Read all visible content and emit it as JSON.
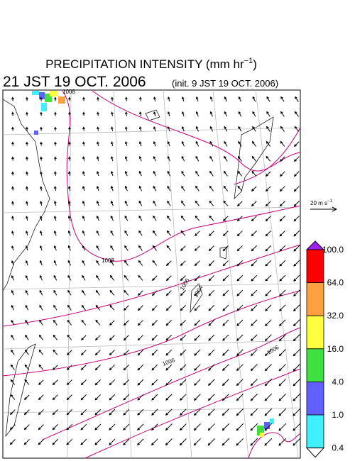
{
  "header": {
    "title": "PRECIPITATION INTENSITY (mm hr",
    "title_exponent": "−1",
    "title_close": ")",
    "valid_time": "21 JST 19 OCT. 2006",
    "init_time": "(init. 9 JST 19 OCT. 2006)"
  },
  "reference_vector": {
    "label": "20 m s",
    "exponent": "−1"
  },
  "colorbar": {
    "labels": [
      "100.0",
      "64.0",
      "32.0",
      "16.0",
      "4.0",
      "1.0",
      "0.4"
    ],
    "over_color": "#a020f0",
    "colors": [
      "#ff0000",
      "#ffa040",
      "#ffff40",
      "#40e040",
      "#6060ff",
      "#40f0ff"
    ],
    "under_color": "#ffffff"
  },
  "isobar_labels": [
    "1008",
    "1008",
    "1006",
    "1004",
    "1006",
    "1006"
  ]
}
